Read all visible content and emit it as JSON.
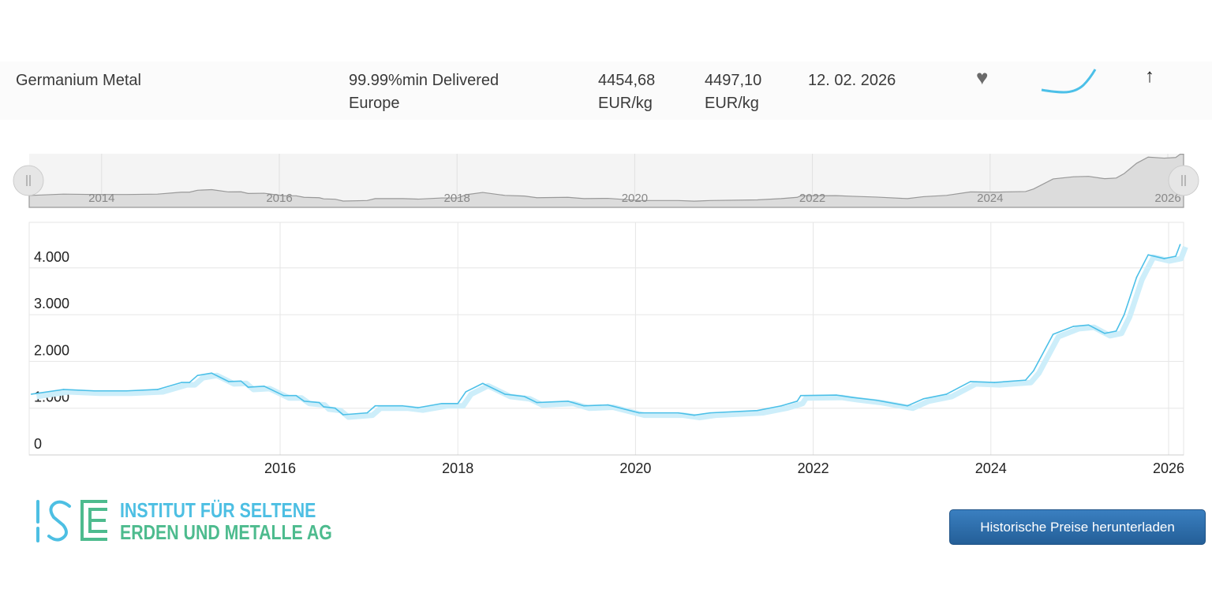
{
  "row": {
    "name": "Germanium Metal",
    "spec_line1": "99.99%min Delivered",
    "spec_line2": "Europe",
    "price_low": "4454,68",
    "price_low_unit": "EUR/kg",
    "price_high": "4497,10",
    "price_high_unit": "EUR/kg",
    "date": "12. 02. 2026",
    "favorite_icon": "heart-icon",
    "trend_icon": "arrow-up-icon"
  },
  "logo": {
    "mark": "ISE",
    "line1": "INSTITUT FÜR SELTENE",
    "line2": "ERDEN UND METALLE AG"
  },
  "download_button": "Historische Preise herunterladen",
  "colors": {
    "line": "#4cc0e8",
    "band": "#cdeefa",
    "button": "#2f6fad"
  },
  "chart_data": {
    "type": "line",
    "title": "",
    "xlabel": "",
    "ylabel": "",
    "x_ticks": [
      "2016",
      "2018",
      "2020",
      "2022",
      "2024",
      "2026"
    ],
    "y_ticks": [
      "0",
      "1.000",
      "2.000",
      "3.000",
      "4.000"
    ],
    "y_tick_values": [
      0,
      1000,
      2000,
      3000,
      4000
    ],
    "navigator_ticks": [
      "2014",
      "2016",
      "2018",
      "2020",
      "2022",
      "2024",
      "2026"
    ],
    "xlim": [
      2013.17,
      2026.17
    ],
    "ylim": [
      0,
      5000
    ],
    "series": [
      {
        "name": "Germanium Metal",
        "unit": "EUR/kg",
        "x": [
          2013.2,
          2013.56,
          2013.91,
          2014.27,
          2014.62,
          2014.89,
          2014.98,
          2015.07,
          2015.23,
          2015.42,
          2015.56,
          2015.64,
          2015.82,
          2016.04,
          2016.18,
          2016.27,
          2016.44,
          2016.49,
          2016.62,
          2016.71,
          2016.98,
          2017.07,
          2017.38,
          2017.55,
          2017.82,
          2018.0,
          2018.09,
          2018.28,
          2018.53,
          2018.75,
          2018.89,
          2019.24,
          2019.42,
          2019.69,
          2020.04,
          2020.48,
          2020.66,
          2020.84,
          2021.37,
          2021.64,
          2021.82,
          2021.86,
          2022.26,
          2022.44,
          2022.71,
          2023.06,
          2023.24,
          2023.5,
          2023.77,
          2024.04,
          2024.39,
          2024.48,
          2024.7,
          2024.93,
          2025.1,
          2025.28,
          2025.41,
          2025.5,
          2025.64,
          2025.77,
          2025.95,
          2026.08,
          2026.13
        ],
        "y": [
          1300,
          1400,
          1370,
          1370,
          1400,
          1550,
          1550,
          1700,
          1750,
          1570,
          1580,
          1450,
          1470,
          1270,
          1270,
          1150,
          1120,
          1030,
          1000,
          860,
          900,
          1050,
          1050,
          1010,
          1100,
          1100,
          1350,
          1530,
          1300,
          1250,
          1120,
          1150,
          1050,
          1070,
          900,
          900,
          850,
          900,
          950,
          1050,
          1150,
          1270,
          1280,
          1230,
          1170,
          1050,
          1200,
          1300,
          1570,
          1550,
          1600,
          1800,
          2580,
          2750,
          2780,
          2600,
          2650,
          3000,
          3800,
          4280,
          4200,
          4250,
          4500
        ]
      }
    ]
  }
}
